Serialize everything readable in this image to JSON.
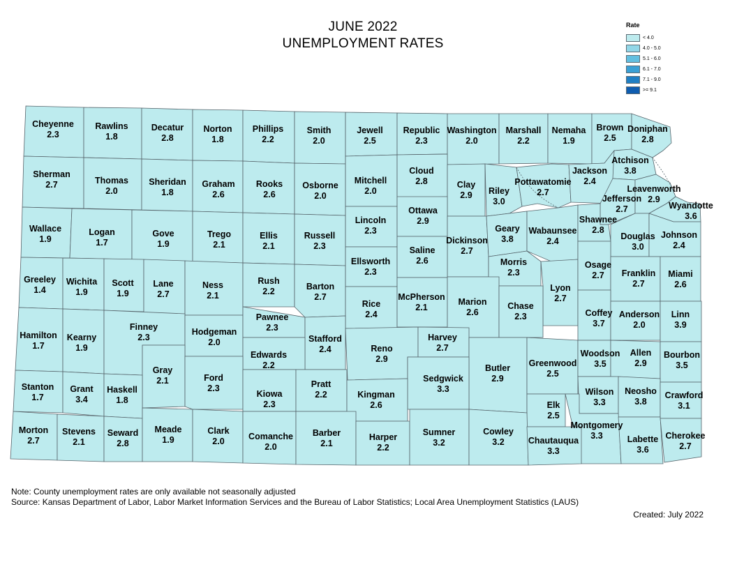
{
  "title_line1": "JUNE 2022",
  "title_line2": "UNEMPLOYMENT RATES",
  "legend": {
    "title": "Rate",
    "items": [
      {
        "label": "< 4.0",
        "color": "#bdebee"
      },
      {
        "label": "4.0 - 5.0",
        "color": "#92d7e8"
      },
      {
        "label": "5.1 - 6.0",
        "color": "#62bfe0"
      },
      {
        "label": "6.1 - 7.0",
        "color": "#3aa0d5"
      },
      {
        "label": "7.1 - 9.0",
        "color": "#1f7fc4"
      },
      {
        "label": ">= 9.1",
        "color": "#0f5db0"
      }
    ]
  },
  "counties": [
    {
      "name": "Cheyenne",
      "rate": "2.3"
    },
    {
      "name": "Rawlins",
      "rate": "1.8"
    },
    {
      "name": "Decatur",
      "rate": "2.8"
    },
    {
      "name": "Norton",
      "rate": "1.8"
    },
    {
      "name": "Phillips",
      "rate": "2.2"
    },
    {
      "name": "Smith",
      "rate": "2.0"
    },
    {
      "name": "Jewell",
      "rate": "2.5"
    },
    {
      "name": "Republic",
      "rate": "2.3"
    },
    {
      "name": "Washington",
      "rate": "2.0"
    },
    {
      "name": "Marshall",
      "rate": "2.2"
    },
    {
      "name": "Nemaha",
      "rate": "1.9"
    },
    {
      "name": "Brown",
      "rate": "2.5"
    },
    {
      "name": "Doniphan",
      "rate": "2.8"
    },
    {
      "name": "Sherman",
      "rate": "2.7"
    },
    {
      "name": "Thomas",
      "rate": "2.0"
    },
    {
      "name": "Sheridan",
      "rate": "1.8"
    },
    {
      "name": "Graham",
      "rate": "2.6"
    },
    {
      "name": "Rooks",
      "rate": "2.6"
    },
    {
      "name": "Osborne",
      "rate": "2.0"
    },
    {
      "name": "Mitchell",
      "rate": "2.0"
    },
    {
      "name": "Cloud",
      "rate": "2.8"
    },
    {
      "name": "Clay",
      "rate": "2.9"
    },
    {
      "name": "Riley",
      "rate": "3.0"
    },
    {
      "name": "Pottawatomie",
      "rate": "2.7"
    },
    {
      "name": "Jackson",
      "rate": "2.4"
    },
    {
      "name": "Atchison",
      "rate": "3.8"
    },
    {
      "name": "Jefferson",
      "rate": "2.7"
    },
    {
      "name": "Leavenworth",
      "rate": "2.9"
    },
    {
      "name": "Wyandotte",
      "rate": "3.6"
    },
    {
      "name": "Wallace",
      "rate": "1.9"
    },
    {
      "name": "Logan",
      "rate": "1.7"
    },
    {
      "name": "Gove",
      "rate": "1.9"
    },
    {
      "name": "Trego",
      "rate": "2.1"
    },
    {
      "name": "Ellis",
      "rate": "2.1"
    },
    {
      "name": "Russell",
      "rate": "2.3"
    },
    {
      "name": "Lincoln",
      "rate": "2.3"
    },
    {
      "name": "Ottawa",
      "rate": "2.9"
    },
    {
      "name": "Dickinson",
      "rate": "2.7"
    },
    {
      "name": "Geary",
      "rate": "3.8"
    },
    {
      "name": "Wabaunsee",
      "rate": "2.4"
    },
    {
      "name": "Shawnee",
      "rate": "2.8"
    },
    {
      "name": "Douglas",
      "rate": "3.0"
    },
    {
      "name": "Johnson",
      "rate": "2.4"
    },
    {
      "name": "Greeley",
      "rate": "1.4"
    },
    {
      "name": "Wichita",
      "rate": "1.9"
    },
    {
      "name": "Scott",
      "rate": "1.9"
    },
    {
      "name": "Lane",
      "rate": "2.7"
    },
    {
      "name": "Ness",
      "rate": "2.1"
    },
    {
      "name": "Rush",
      "rate": "2.2"
    },
    {
      "name": "Barton",
      "rate": "2.7"
    },
    {
      "name": "Ellsworth",
      "rate": "2.3"
    },
    {
      "name": "Saline",
      "rate": "2.6"
    },
    {
      "name": "Morris",
      "rate": "2.3"
    },
    {
      "name": "Lyon",
      "rate": "2.7"
    },
    {
      "name": "Osage",
      "rate": "2.7"
    },
    {
      "name": "Franklin",
      "rate": "2.7"
    },
    {
      "name": "Miami",
      "rate": "2.6"
    },
    {
      "name": "Rice",
      "rate": "2.4"
    },
    {
      "name": "McPherson",
      "rate": "2.1"
    },
    {
      "name": "Marion",
      "rate": "2.6"
    },
    {
      "name": "Chase",
      "rate": "2.3"
    },
    {
      "name": "Coffey",
      "rate": "3.7"
    },
    {
      "name": "Anderson",
      "rate": "2.0"
    },
    {
      "name": "Linn",
      "rate": "3.9"
    },
    {
      "name": "Hamilton",
      "rate": "1.7"
    },
    {
      "name": "Kearny",
      "rate": "1.9"
    },
    {
      "name": "Finney",
      "rate": "2.3"
    },
    {
      "name": "Hodgeman",
      "rate": "2.0"
    },
    {
      "name": "Pawnee",
      "rate": "2.3"
    },
    {
      "name": "Stafford",
      "rate": "2.4"
    },
    {
      "name": "Reno",
      "rate": "2.9"
    },
    {
      "name": "Harvey",
      "rate": "2.7"
    },
    {
      "name": "Butler",
      "rate": "2.9"
    },
    {
      "name": "Greenwood",
      "rate": "2.5"
    },
    {
      "name": "Woodson",
      "rate": "3.5"
    },
    {
      "name": "Allen",
      "rate": "2.9"
    },
    {
      "name": "Bourbon",
      "rate": "3.5"
    },
    {
      "name": "Edwards",
      "rate": "2.2"
    },
    {
      "name": "Gray",
      "rate": "2.1"
    },
    {
      "name": "Ford",
      "rate": "2.3"
    },
    {
      "name": "Sedgwick",
      "rate": "3.3"
    },
    {
      "name": "Stanton",
      "rate": "1.7"
    },
    {
      "name": "Grant",
      "rate": "3.4"
    },
    {
      "name": "Haskell",
      "rate": "1.8"
    },
    {
      "name": "Kiowa",
      "rate": "2.3"
    },
    {
      "name": "Pratt",
      "rate": "2.2"
    },
    {
      "name": "Kingman",
      "rate": "2.6"
    },
    {
      "name": "Wilson",
      "rate": "3.3"
    },
    {
      "name": "Neosho",
      "rate": "3.8"
    },
    {
      "name": "Crawford",
      "rate": "3.1"
    },
    {
      "name": "Elk",
      "rate": "2.5"
    },
    {
      "name": "Montgomery",
      "rate": "3.3"
    },
    {
      "name": "Labette",
      "rate": "3.6"
    },
    {
      "name": "Cherokee",
      "rate": "2.7"
    },
    {
      "name": "Morton",
      "rate": "2.7"
    },
    {
      "name": "Stevens",
      "rate": "2.1"
    },
    {
      "name": "Seward",
      "rate": "2.8"
    },
    {
      "name": "Meade",
      "rate": "1.9"
    },
    {
      "name": "Clark",
      "rate": "2.0"
    },
    {
      "name": "Comanche",
      "rate": "2.0"
    },
    {
      "name": "Barber",
      "rate": "2.1"
    },
    {
      "name": "Harper",
      "rate": "2.2"
    },
    {
      "name": "Sumner",
      "rate": "3.2"
    },
    {
      "name": "Cowley",
      "rate": "3.2"
    },
    {
      "name": "Chautauqua",
      "rate": "3.3"
    }
  ],
  "note": "Note: County unemployment rates are only available not seasonally adjusted",
  "source": "Source: Kansas Department of Labor, Labor Market Information Services and the Bureau of Labor Statistics; Local Area Unemployment Statistics (LAUS)",
  "created": "Created: July 2022"
}
